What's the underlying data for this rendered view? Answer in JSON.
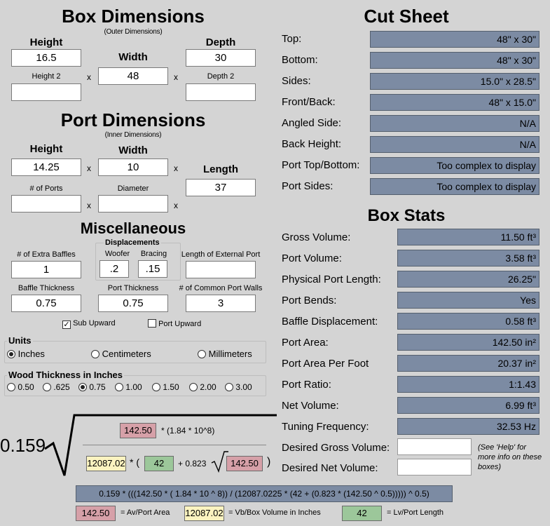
{
  "box_dimensions": {
    "title": "Box Dimensions",
    "subtitle": "(Outer Dimensions)",
    "height_label": "Height",
    "width_label": "Width",
    "depth_label": "Depth",
    "height_value": "16.5",
    "width_value": "48",
    "depth_value": "30",
    "height2_label": "Height 2",
    "depth2_label": "Depth 2",
    "height2_value": "",
    "depth2_value": "",
    "times": "x"
  },
  "port_dimensions": {
    "title": "Port Dimensions",
    "subtitle": "(Inner Dimensions)",
    "height_label": "Height",
    "width_label": "Width",
    "length_label": "Length",
    "height_value": "14.25",
    "width_value": "10",
    "length_value": "37",
    "ports_label": "# of Ports",
    "diameter_label": "Diameter",
    "ports_value": "",
    "diameter_value": ""
  },
  "misc": {
    "title": "Miscellaneous",
    "extra_baffles_label": "# of Extra Baffles",
    "extra_baffles_value": "1",
    "displacements_label": "Displacements",
    "woofer_label": "Woofer",
    "bracing_label": "Bracing",
    "woofer_value": ".2",
    "bracing_value": ".15",
    "ext_port_label": "Length of External Port",
    "ext_port_value": "",
    "baffle_thickness_label": "Baffle Thickness",
    "baffle_thickness_value": "0.75",
    "port_thickness_label": "Port Thickness",
    "port_thickness_value": "0.75",
    "common_walls_label": "# of Common Port Walls",
    "common_walls_value": "3",
    "sub_upward_label": "Sub Upward",
    "port_upward_label": "Port Upward",
    "sub_upward_checked": true,
    "port_upward_checked": false
  },
  "units": {
    "label": "Units",
    "options": [
      "Inches",
      "Centimeters",
      "Millimeters"
    ],
    "selected": "Inches"
  },
  "wood": {
    "label": "Wood Thickness in Inches",
    "options": [
      "0.50",
      ".625",
      "0.75",
      "1.00",
      "1.50",
      "2.00",
      "3.00"
    ],
    "selected": "0.75"
  },
  "cut_sheet": {
    "title": "Cut Sheet",
    "rows": [
      {
        "label": "Top:",
        "value": "48\" x 30\""
      },
      {
        "label": "Bottom:",
        "value": "48\" x 30\""
      },
      {
        "label": "Sides:",
        "value": "15.0\" x 28.5\""
      },
      {
        "label": "Front/Back:",
        "value": "48\" x 15.0\""
      },
      {
        "label": "Angled Side:",
        "value": "N/A"
      },
      {
        "label": "Back Height:",
        "value": "N/A"
      },
      {
        "label": "Port Top/Bottom:",
        "value": "Too complex to display"
      },
      {
        "label": "Port Sides:",
        "value": "Too complex to display"
      }
    ]
  },
  "box_stats": {
    "title": "Box Stats",
    "rows": [
      {
        "label": "Gross Volume:",
        "value": "11.50 ft³"
      },
      {
        "label": "Port Volume:",
        "value": "3.58 ft³"
      },
      {
        "label": "Physical Port Length:",
        "value": "26.25\""
      },
      {
        "label": "Port Bends:",
        "value": "Yes"
      },
      {
        "label": "Baffle Displacement:",
        "value": "0.58 ft³"
      },
      {
        "label": "Port Area:",
        "value": "142.50 in²"
      },
      {
        "label": "Port Area Per Foot",
        "value": "20.37 in²"
      },
      {
        "label": "Port Ratio:",
        "value": "1:1.43"
      },
      {
        "label": "Net Volume:",
        "value": "6.99 ft³"
      },
      {
        "label": "Tuning Frequency:",
        "value": "32.53 Hz"
      }
    ],
    "desired_gross_label": "Desired Gross Volume:",
    "desired_net_label": "Desired Net Volume:",
    "desired_gross_value": "",
    "desired_net_value": "",
    "help_note": "(See 'Help' for more info on these boxes)"
  },
  "formula": {
    "coefficient": "0.159",
    "numerator_av": "142.50",
    "numerator_tail": "* (1.84 * 10^8)",
    "vb": "12087.02",
    "star_paren": "* (",
    "lv": "42",
    "plus_coeff": "+ 0.823",
    "sqrt_av": "142.50",
    "close_paren": ")",
    "expression": "0.159 * (((142.50 * ( 1.84 * 10 ^ 8)) / (12087.0225 * (42 + (0.823 * (142.50 ^ 0.5))))) ^ 0.5)",
    "legend": {
      "av_value": "142.50",
      "av_label": "= Av/Port Area",
      "vb_value": "12087.02",
      "vb_label": "= Vb/Box Volume in Inches",
      "lv_value": "42",
      "lv_label": "= Lv/Port Length"
    }
  },
  "colors": {
    "background": "#d4d4d4",
    "result_box": "#7c8ba3",
    "av_chip": "#d6a0a8",
    "vb_chip": "#fbf3c0",
    "lv_chip": "#9cc79a"
  }
}
